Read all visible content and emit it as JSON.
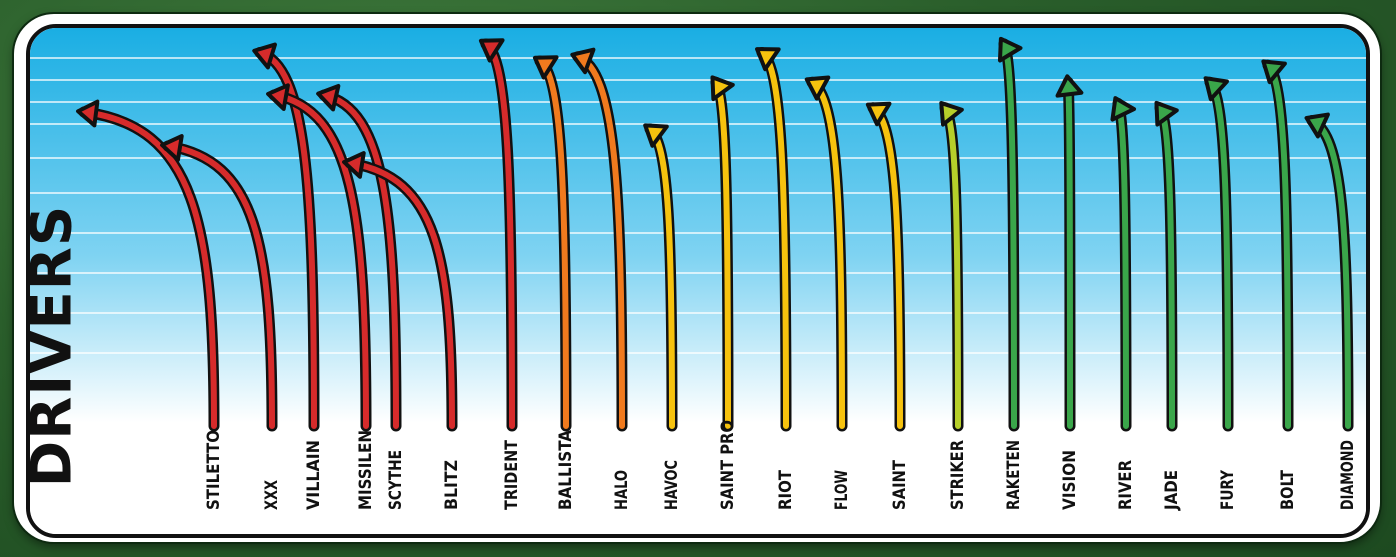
{
  "chart_data": {
    "type": "line",
    "title": "",
    "ylabel": "DRIVERS",
    "xlabel": "",
    "grid": true,
    "color_groups": {
      "red": "#d62b2b",
      "orange": "#f07a1e",
      "yellow": "#f6c20e",
      "lime": "#b6cf2a",
      "green": "#3aa64a",
      "outline": "#111111",
      "sky_top": "#1aaee3",
      "sky_bottom": "#ffffff"
    },
    "series": [
      {
        "name": "STILETTO",
        "color": "red",
        "peak": 0.84
      },
      {
        "name": "XXX",
        "color": "red",
        "peak": 0.76
      },
      {
        "name": "VILLAIN",
        "color": "red",
        "peak": 0.98
      },
      {
        "name": "MISSILEN",
        "color": "red",
        "peak": 0.88
      },
      {
        "name": "SCYTHE",
        "color": "red",
        "peak": 0.88
      },
      {
        "name": "BLITZ",
        "color": "red",
        "peak": 0.72
      },
      {
        "name": "TRIDENT",
        "color": "red",
        "peak": 1.0
      },
      {
        "name": "BALLISTA",
        "color": "orange",
        "peak": 0.96
      },
      {
        "name": "HALO",
        "color": "orange",
        "peak": 0.97
      },
      {
        "name": "HAVOC",
        "color": "yellow",
        "peak": 0.8
      },
      {
        "name": "SAINT PRO",
        "color": "yellow",
        "peak": 0.91
      },
      {
        "name": "RIOT",
        "color": "yellow",
        "peak": 0.98
      },
      {
        "name": "FLOW",
        "color": "yellow",
        "peak": 0.91
      },
      {
        "name": "SAINT",
        "color": "yellow",
        "peak": 0.85
      },
      {
        "name": "STRIKER",
        "color": "lime",
        "peak": 0.85
      },
      {
        "name": "RAKETEN",
        "color": "green",
        "peak": 1.0
      },
      {
        "name": "VISION",
        "color": "green",
        "peak": 0.91
      },
      {
        "name": "RIVER",
        "color": "green",
        "peak": 0.86
      },
      {
        "name": "JADE",
        "color": "green",
        "peak": 0.85
      },
      {
        "name": "FURY",
        "color": "green",
        "peak": 0.91
      },
      {
        "name": "BOLT",
        "color": "green",
        "peak": 0.95
      },
      {
        "name": "DIAMOND",
        "color": "green",
        "peak": 0.82
      }
    ]
  }
}
